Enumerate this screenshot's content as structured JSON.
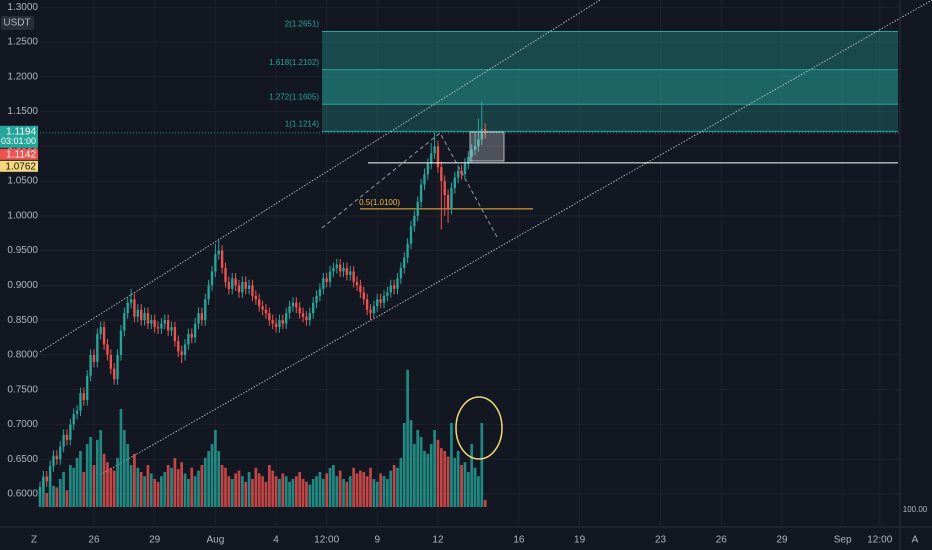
{
  "chart_data": {
    "type": "candlestick",
    "ui": {
      "currency": "USDT",
      "volume_scale_label": "100.00",
      "left_icon": "Z",
      "right_icon": "A",
      "countdown": "03:01:00"
    },
    "up_color": "#26a69a",
    "down_color": "#ef5350",
    "ylim": [
      0.5525,
      1.3104
    ],
    "yticks": [
      {
        "value": 0.6,
        "label": "0.6000"
      },
      {
        "value": 0.65,
        "label": "0.6500"
      },
      {
        "value": 0.7,
        "label": "0.7000"
      },
      {
        "value": 0.75,
        "label": "0.7500"
      },
      {
        "value": 0.8,
        "label": "0.8000"
      },
      {
        "value": 0.85,
        "label": "0.8500"
      },
      {
        "value": 0.9,
        "label": "0.9000"
      },
      {
        "value": 0.95,
        "label": "0.9500"
      },
      {
        "value": 1.0,
        "label": "1.0000"
      },
      {
        "value": 1.05,
        "label": "1.0500"
      },
      {
        "value": 1.1,
        "label": "1.1000"
      },
      {
        "value": 1.15,
        "label": "1.1500"
      },
      {
        "value": 1.2,
        "label": "1.2000"
      },
      {
        "value": 1.25,
        "label": "1.2500"
      },
      {
        "value": 1.3,
        "label": "1.3000"
      }
    ],
    "xlim": [
      0,
      255
    ],
    "xticks": [
      {
        "value": 16,
        "label": "26"
      },
      {
        "value": 34,
        "label": "29"
      },
      {
        "value": 52,
        "label": "Aug"
      },
      {
        "value": 70,
        "label": "4"
      },
      {
        "value": 85,
        "label": "12:00"
      },
      {
        "value": 100,
        "label": "9"
      },
      {
        "value": 118,
        "label": "12"
      },
      {
        "value": 142,
        "label": "16"
      },
      {
        "value": 160,
        "label": "19"
      },
      {
        "value": 184,
        "label": "23"
      },
      {
        "value": 202,
        "label": "26"
      },
      {
        "value": 220,
        "label": "29"
      },
      {
        "value": 238,
        "label": "Sep"
      },
      {
        "value": 249,
        "label": "12:00"
      }
    ],
    "grid": true,
    "open": [
      0.605,
      0.61,
      0.625,
      0.618,
      0.64,
      0.655,
      0.65,
      0.668,
      0.685,
      0.678,
      0.7,
      0.715,
      0.72,
      0.745,
      0.735,
      0.77,
      0.8,
      0.79,
      0.83,
      0.84,
      0.815,
      0.8,
      0.78,
      0.765,
      0.8,
      0.835,
      0.86,
      0.875,
      0.88,
      0.855,
      0.865,
      0.85,
      0.86,
      0.845,
      0.85,
      0.84,
      0.838,
      0.845,
      0.85,
      0.835,
      0.84,
      0.82,
      0.805,
      0.8,
      0.815,
      0.83,
      0.825,
      0.845,
      0.86,
      0.85,
      0.88,
      0.9,
      0.92,
      0.945,
      0.95,
      0.925,
      0.905,
      0.895,
      0.91,
      0.9,
      0.89,
      0.905,
      0.895,
      0.9,
      0.885,
      0.88,
      0.87,
      0.865,
      0.86,
      0.85,
      0.845,
      0.84,
      0.85,
      0.845,
      0.86,
      0.87,
      0.875,
      0.868,
      0.86,
      0.855,
      0.85,
      0.86,
      0.875,
      0.885,
      0.895,
      0.91,
      0.905,
      0.92,
      0.925,
      0.93,
      0.92,
      0.925,
      0.915,
      0.92,
      0.905,
      0.9,
      0.89,
      0.88,
      0.865,
      0.86,
      0.87,
      0.88,
      0.875,
      0.885,
      0.89,
      0.9,
      0.895,
      0.91,
      0.925,
      0.94,
      0.96,
      0.985,
      1.0,
      1.02,
      1.045,
      1.06,
      1.075,
      1.09,
      1.1,
      1.07,
      1.05,
      1.03,
      1.01,
      1.04,
      1.055,
      1.065,
      1.06,
      1.075,
      1.085,
      1.095,
      1.1,
      1.11,
      1.125
    ],
    "high": [
      0.618,
      0.633,
      0.633,
      0.648,
      0.663,
      0.663,
      0.676,
      0.693,
      0.693,
      0.708,
      0.723,
      0.728,
      0.753,
      0.753,
      0.778,
      0.808,
      0.808,
      0.838,
      0.848,
      0.848,
      0.823,
      0.808,
      0.788,
      0.808,
      0.843,
      0.868,
      0.883,
      0.895,
      0.888,
      0.873,
      0.873,
      0.868,
      0.868,
      0.858,
      0.858,
      0.848,
      0.853,
      0.858,
      0.858,
      0.848,
      0.848,
      0.828,
      0.813,
      0.823,
      0.838,
      0.838,
      0.853,
      0.868,
      0.868,
      0.888,
      0.908,
      0.928,
      0.96,
      0.965,
      0.958,
      0.933,
      0.913,
      0.918,
      0.918,
      0.908,
      0.913,
      0.913,
      0.908,
      0.908,
      0.893,
      0.888,
      0.878,
      0.873,
      0.868,
      0.858,
      0.853,
      0.858,
      0.858,
      0.868,
      0.878,
      0.883,
      0.883,
      0.876,
      0.868,
      0.863,
      0.868,
      0.883,
      0.893,
      0.903,
      0.918,
      0.918,
      0.928,
      0.933,
      0.938,
      0.938,
      0.933,
      0.933,
      0.928,
      0.928,
      0.913,
      0.908,
      0.898,
      0.888,
      0.873,
      0.878,
      0.888,
      0.888,
      0.893,
      0.898,
      0.908,
      0.908,
      0.918,
      0.933,
      0.948,
      0.968,
      0.993,
      1.008,
      1.028,
      1.053,
      1.068,
      1.083,
      1.105,
      1.12,
      1.108,
      1.078,
      1.058,
      1.038,
      1.048,
      1.063,
      1.073,
      1.073,
      1.083,
      1.093,
      1.103,
      1.12,
      1.14,
      1.165,
      1.133
    ],
    "low": [
      0.597,
      0.602,
      0.61,
      0.61,
      0.632,
      0.642,
      0.642,
      0.66,
      0.67,
      0.67,
      0.692,
      0.707,
      0.712,
      0.727,
      0.727,
      0.762,
      0.782,
      0.782,
      0.822,
      0.807,
      0.792,
      0.772,
      0.757,
      0.757,
      0.792,
      0.827,
      0.852,
      0.867,
      0.847,
      0.847,
      0.842,
      0.842,
      0.837,
      0.837,
      0.832,
      0.83,
      0.83,
      0.837,
      0.827,
      0.827,
      0.812,
      0.797,
      0.788,
      0.792,
      0.807,
      0.817,
      0.817,
      0.837,
      0.842,
      0.842,
      0.872,
      0.892,
      0.912,
      0.937,
      0.917,
      0.897,
      0.887,
      0.887,
      0.892,
      0.882,
      0.882,
      0.887,
      0.887,
      0.877,
      0.872,
      0.862,
      0.857,
      0.852,
      0.842,
      0.837,
      0.832,
      0.832,
      0.837,
      0.837,
      0.852,
      0.862,
      0.86,
      0.852,
      0.847,
      0.842,
      0.842,
      0.852,
      0.867,
      0.877,
      0.887,
      0.897,
      0.897,
      0.912,
      0.917,
      0.912,
      0.912,
      0.907,
      0.907,
      0.897,
      0.892,
      0.882,
      0.872,
      0.857,
      0.85,
      0.852,
      0.862,
      0.867,
      0.867,
      0.877,
      0.882,
      0.887,
      0.887,
      0.902,
      0.917,
      0.932,
      0.952,
      0.977,
      0.992,
      1.012,
      1.037,
      1.052,
      1.067,
      1.082,
      1.062,
      0.98,
      1.0,
      0.99,
      1.002,
      1.032,
      1.047,
      1.052,
      1.052,
      1.067,
      1.077,
      1.087,
      1.092,
      1.102,
      1.111
    ],
    "close": [
      0.61,
      0.625,
      0.618,
      0.64,
      0.655,
      0.65,
      0.668,
      0.685,
      0.678,
      0.7,
      0.715,
      0.72,
      0.745,
      0.735,
      0.77,
      0.8,
      0.79,
      0.83,
      0.84,
      0.815,
      0.8,
      0.78,
      0.765,
      0.8,
      0.835,
      0.86,
      0.875,
      0.88,
      0.855,
      0.865,
      0.85,
      0.86,
      0.845,
      0.85,
      0.84,
      0.838,
      0.845,
      0.85,
      0.835,
      0.84,
      0.82,
      0.805,
      0.8,
      0.815,
      0.83,
      0.825,
      0.845,
      0.86,
      0.85,
      0.88,
      0.9,
      0.92,
      0.945,
      0.95,
      0.925,
      0.905,
      0.895,
      0.91,
      0.9,
      0.89,
      0.905,
      0.895,
      0.9,
      0.885,
      0.88,
      0.87,
      0.865,
      0.86,
      0.85,
      0.845,
      0.84,
      0.85,
      0.845,
      0.86,
      0.87,
      0.875,
      0.868,
      0.86,
      0.855,
      0.85,
      0.86,
      0.875,
      0.885,
      0.895,
      0.91,
      0.905,
      0.92,
      0.925,
      0.93,
      0.92,
      0.925,
      0.915,
      0.92,
      0.905,
      0.9,
      0.89,
      0.88,
      0.865,
      0.86,
      0.87,
      0.88,
      0.875,
      0.885,
      0.89,
      0.9,
      0.895,
      0.91,
      0.925,
      0.94,
      0.96,
      0.985,
      1.0,
      1.02,
      1.045,
      1.06,
      1.075,
      1.09,
      1.1,
      1.07,
      1.05,
      1.03,
      1.01,
      1.04,
      1.055,
      1.065,
      1.06,
      1.075,
      1.085,
      1.095,
      1.1,
      1.11,
      1.125,
      1.1194
    ],
    "volume": [
      12,
      18,
      10,
      22,
      15,
      14,
      20,
      25,
      12,
      30,
      28,
      35,
      40,
      25,
      45,
      50,
      30,
      48,
      55,
      38,
      32,
      28,
      26,
      35,
      70,
      55,
      45,
      30,
      38,
      28,
      25,
      22,
      30,
      24,
      20,
      18,
      22,
      25,
      30,
      28,
      35,
      27,
      32,
      24,
      20,
      28,
      22,
      26,
      30,
      35,
      40,
      45,
      55,
      40,
      30,
      28,
      22,
      20,
      24,
      26,
      22,
      18,
      25,
      20,
      28,
      24,
      22,
      18,
      30,
      26,
      22,
      20,
      24,
      22,
      18,
      20,
      22,
      25,
      20,
      18,
      16,
      20,
      22,
      25,
      20,
      24,
      28,
      30,
      22,
      26,
      20,
      18,
      22,
      28,
      24,
      26,
      25,
      22,
      28,
      20,
      18,
      24,
      22,
      20,
      26,
      30,
      28,
      35,
      60,
      98,
      62,
      45,
      55,
      50,
      40,
      38,
      45,
      55,
      48,
      42,
      40,
      36,
      60,
      35,
      40,
      30,
      32,
      25,
      45,
      28,
      22,
      60,
      5
    ],
    "volume_lim": [
      0,
      100
    ],
    "price_tags": [
      {
        "value": 1.1194,
        "color": "#26a69a"
      },
      {
        "value": 1.1142,
        "color": "#ef5350"
      },
      {
        "value": 1.0762,
        "color": "#f5d87a"
      }
    ],
    "horizontal_line": 1.0762,
    "fib_levels": [
      {
        "label": "1(1.1214)",
        "value": 1.1214,
        "color": "rgba(38,166,154,0.28)"
      },
      {
        "label": "1.272(1.1605)",
        "value": 1.1605,
        "color": "rgba(38,166,154,0.55)"
      },
      {
        "label": "1.618(1.2102)",
        "value": 1.2102,
        "color": "rgba(38,166,154,0.35)"
      },
      {
        "label": "2(1.2651)",
        "value": 1.2651,
        "color": "#26a69a"
      }
    ],
    "fib_retracement": {
      "label": "0.5(1.0100)",
      "value": 1.01,
      "color": "#f5b942"
    }
  }
}
